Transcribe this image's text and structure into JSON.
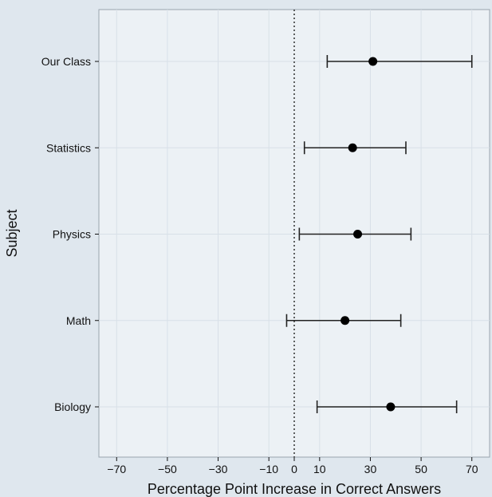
{
  "chart_data": {
    "type": "forest",
    "xlabel": "Percentage Point Increase in Correct Answers",
    "ylabel": "Subject",
    "xlim": [
      -77,
      77
    ],
    "x_ticks": [
      -70,
      -50,
      -30,
      -10,
      0,
      10,
      30,
      50,
      70
    ],
    "x_tick_labels": [
      "−70",
      "−50",
      "−30",
      "−10",
      "0",
      "10",
      "30",
      "50",
      "70"
    ],
    "reference_line": {
      "x": 0,
      "style": "dotted"
    },
    "grid": true,
    "colors": {
      "background": "#dfe7ee",
      "plot_area": "#ecf1f5",
      "gridline": "#d8e0e8",
      "marker": "#000000"
    },
    "categories": [
      "Our Class",
      "Statistics",
      "Physics",
      "Math",
      "Biology"
    ],
    "points": [
      {
        "label": "Our Class",
        "estimate": 31,
        "lower": 13,
        "upper": 70
      },
      {
        "label": "Statistics",
        "estimate": 23,
        "lower": 4,
        "upper": 44
      },
      {
        "label": "Physics",
        "estimate": 25,
        "lower": 2,
        "upper": 46
      },
      {
        "label": "Math",
        "estimate": 20,
        "lower": -3,
        "upper": 42
      },
      {
        "label": "Biology",
        "estimate": 38,
        "lower": 9,
        "upper": 64
      }
    ]
  }
}
